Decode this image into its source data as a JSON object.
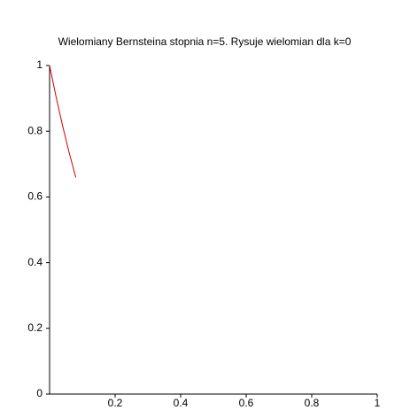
{
  "chart_data": {
    "type": "line",
    "title": "Wielomiany Bernsteina stopnia n=5. Rysuje wielomian dla k=0",
    "x": [
      0,
      0.02,
      0.04,
      0.06,
      0.08
    ],
    "series": [
      {
        "color": "#cc0000",
        "values": [
          1,
          0.904,
          0.815,
          0.734,
          0.659
        ]
      }
    ],
    "xlim": [
      0,
      1
    ],
    "ylim": [
      0,
      1
    ],
    "xticks": [
      0.2,
      0.4,
      0.6,
      0.8,
      1
    ],
    "yticks": [
      0,
      0.2,
      0.4,
      0.6,
      0.8,
      1
    ]
  }
}
